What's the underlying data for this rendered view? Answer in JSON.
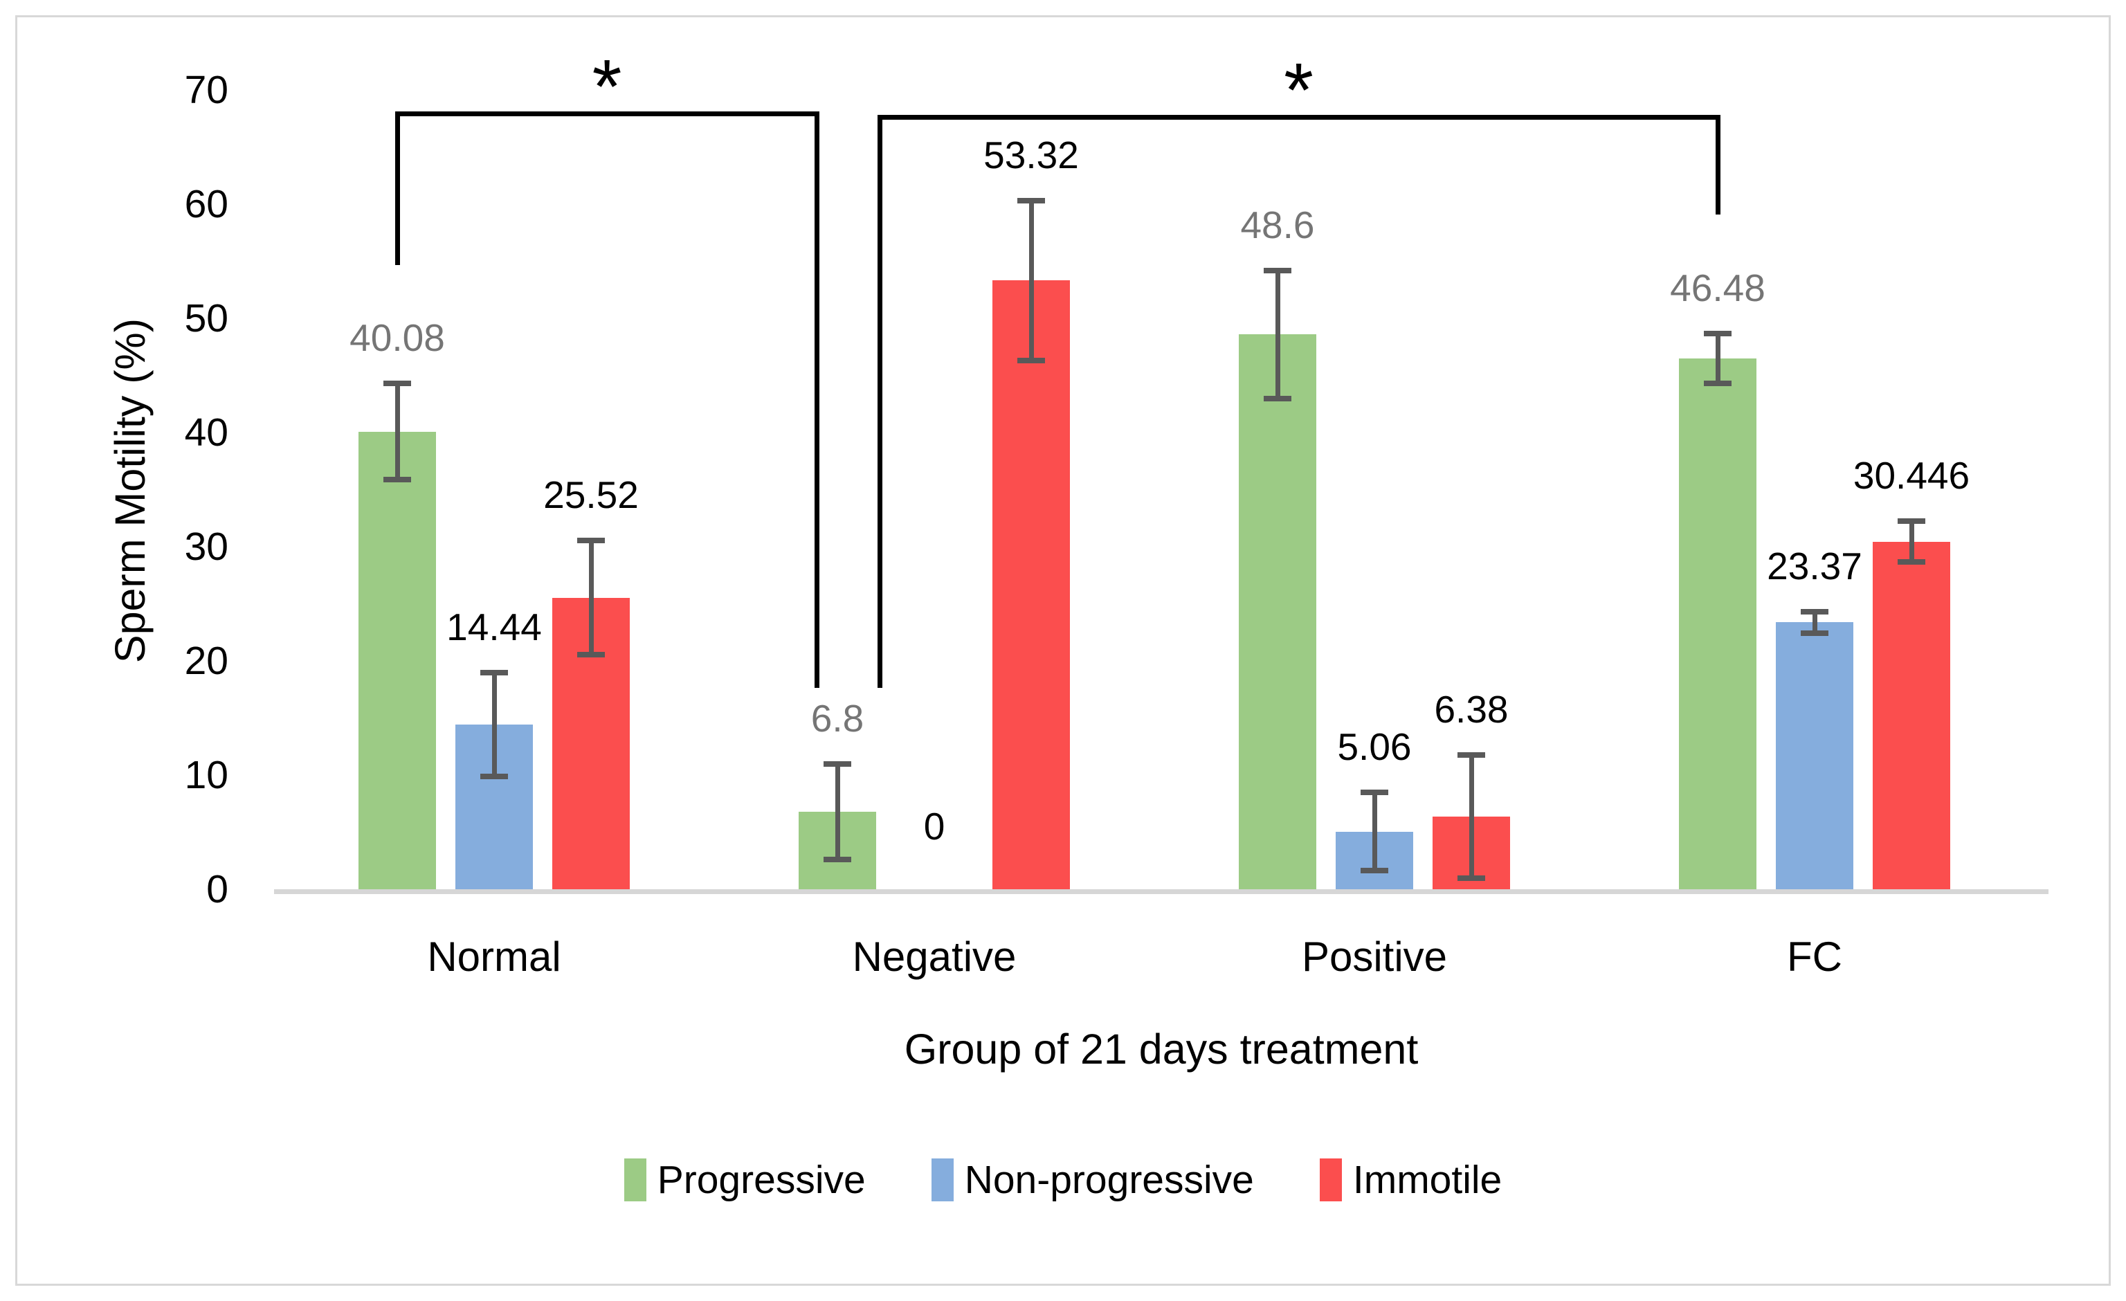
{
  "figure": {
    "background_color": "#FFFFFF",
    "border_color": "#D8D8D8"
  },
  "chart_data": {
    "type": "bar",
    "title": "",
    "xlabel": "Group of 21 days treatment",
    "ylabel": "Sperm Motility (%)",
    "ylim": [
      0,
      70
    ],
    "yticks": [
      0,
      10,
      20,
      30,
      40,
      50,
      60,
      70
    ],
    "grid": false,
    "legend_position": "bottom-center",
    "categories": [
      "Normal",
      "Negative",
      "Positive",
      "FC"
    ],
    "series": [
      {
        "name": "Progressive",
        "color": "#9CCB85",
        "label_color": "#757575",
        "values": [
          40.08,
          6.8,
          48.6,
          46.48
        ],
        "labels": [
          "40.08",
          "6.8",
          "48.6",
          "46.48"
        ],
        "errors": [
          4.2,
          4.2,
          5.6,
          2.2
        ]
      },
      {
        "name": "Non-progressive",
        "color": "#85ADDD",
        "label_color": "#000000",
        "values": [
          14.44,
          0,
          5.06,
          23.37
        ],
        "labels": [
          "14.44",
          "0",
          "5.06",
          "23.37"
        ],
        "errors": [
          4.55,
          0,
          3.45,
          0.95
        ]
      },
      {
        "name": "Immotile",
        "color": "#FB4E4E",
        "label_color": "#000000",
        "values": [
          25.52,
          53.32,
          6.38,
          30.446
        ],
        "labels": [
          "25.52",
          "53.32",
          "6.38",
          "30.446"
        ],
        "errors": [
          5.0,
          7.0,
          5.4,
          1.8
        ]
      }
    ],
    "error_bar_color": "#595959",
    "axis_line_color": "#D6D6D6",
    "significance_brackets": [
      {
        "label": "*",
        "x1": 574,
        "x2": 1180,
        "y_top": 161,
        "y1_bottom": 383,
        "y2_bottom": 994
      },
      {
        "label": "*",
        "x1": 1271,
        "x2": 2482,
        "y_top": 166,
        "y1_bottom": 994,
        "y2_bottom": 310
      }
    ]
  }
}
